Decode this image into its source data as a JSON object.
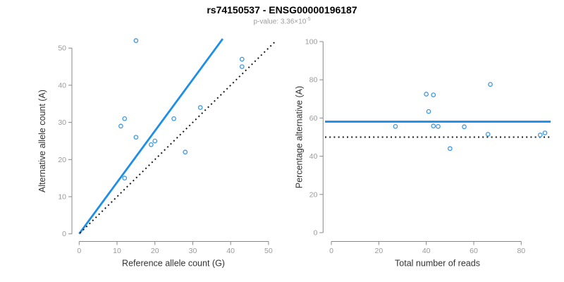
{
  "header": {
    "title": "rs74150537 - ENSG00000196187",
    "subtitle_prefix": "p-value: 3.36×10",
    "subtitle_exponent": "-5"
  },
  "colors": {
    "accent_blue": "#1E8FE8",
    "point_blue": "#3B97E3",
    "dotted_black": "#1a1a1a",
    "axis_gray": "#888888",
    "tick_label_gray": "#9a9a9a",
    "axis_title_color": "#333333",
    "subtitle_gray": "#9c9c9c",
    "title_black": "#000000"
  },
  "chart_data": [
    {
      "type": "scatter",
      "name": "allele-counts-scatter",
      "xlabel": "Reference allele count (G)",
      "ylabel": "Alternative allele count (A)",
      "xlim": [
        0,
        52
      ],
      "ylim": [
        0,
        52
      ],
      "xticks": [
        0,
        10,
        20,
        30,
        40,
        50
      ],
      "yticks": [
        0,
        10,
        20,
        30,
        40,
        50
      ],
      "grid": false,
      "legend": "none",
      "points": [
        [
          15,
          52
        ],
        [
          43,
          47
        ],
        [
          43,
          45
        ],
        [
          32,
          34
        ],
        [
          12,
          31
        ],
        [
          25,
          31
        ],
        [
          11,
          29
        ],
        [
          15,
          26
        ],
        [
          20,
          25
        ],
        [
          19,
          24
        ],
        [
          28,
          22
        ],
        [
          12,
          15
        ]
      ],
      "lines": [
        {
          "name": "fit-line",
          "style": "solid",
          "color_key": "accent_blue",
          "slope": 1.386,
          "from": [
            0,
            0
          ],
          "to": [
            37.9,
            52.5
          ]
        },
        {
          "name": "identity-line",
          "style": "dotted",
          "color_key": "dotted_black",
          "slope": 1.0,
          "from": [
            0.2,
            0.2
          ],
          "to": [
            52,
            52
          ]
        }
      ]
    },
    {
      "type": "scatter",
      "name": "percentage-vs-reads-scatter",
      "xlabel": "Total number of reads",
      "ylabel": "Percentage alternative (A)",
      "xlim": [
        0,
        93
      ],
      "ylim": [
        0,
        100
      ],
      "xticks": [
        0,
        20,
        40,
        60,
        80
      ],
      "yticks": [
        0,
        20,
        40,
        60,
        80,
        100
      ],
      "grid": false,
      "legend": "none",
      "points": [
        [
          67,
          77.6
        ],
        [
          90,
          52.2
        ],
        [
          88,
          51.1
        ],
        [
          66,
          51.5
        ],
        [
          43,
          72.1
        ],
        [
          56,
          55.4
        ],
        [
          40,
          72.5
        ],
        [
          41,
          63.4
        ],
        [
          45,
          55.6
        ],
        [
          43,
          55.8
        ],
        [
          50,
          44.0
        ],
        [
          27,
          55.6
        ]
      ],
      "hlines": [
        {
          "name": "mean-percentage-line",
          "style": "solid",
          "color_key": "accent_blue",
          "y": 58.1
        },
        {
          "name": "fifty-percent-line",
          "style": "dotted",
          "color_key": "dotted_black",
          "y": 50
        }
      ]
    }
  ]
}
